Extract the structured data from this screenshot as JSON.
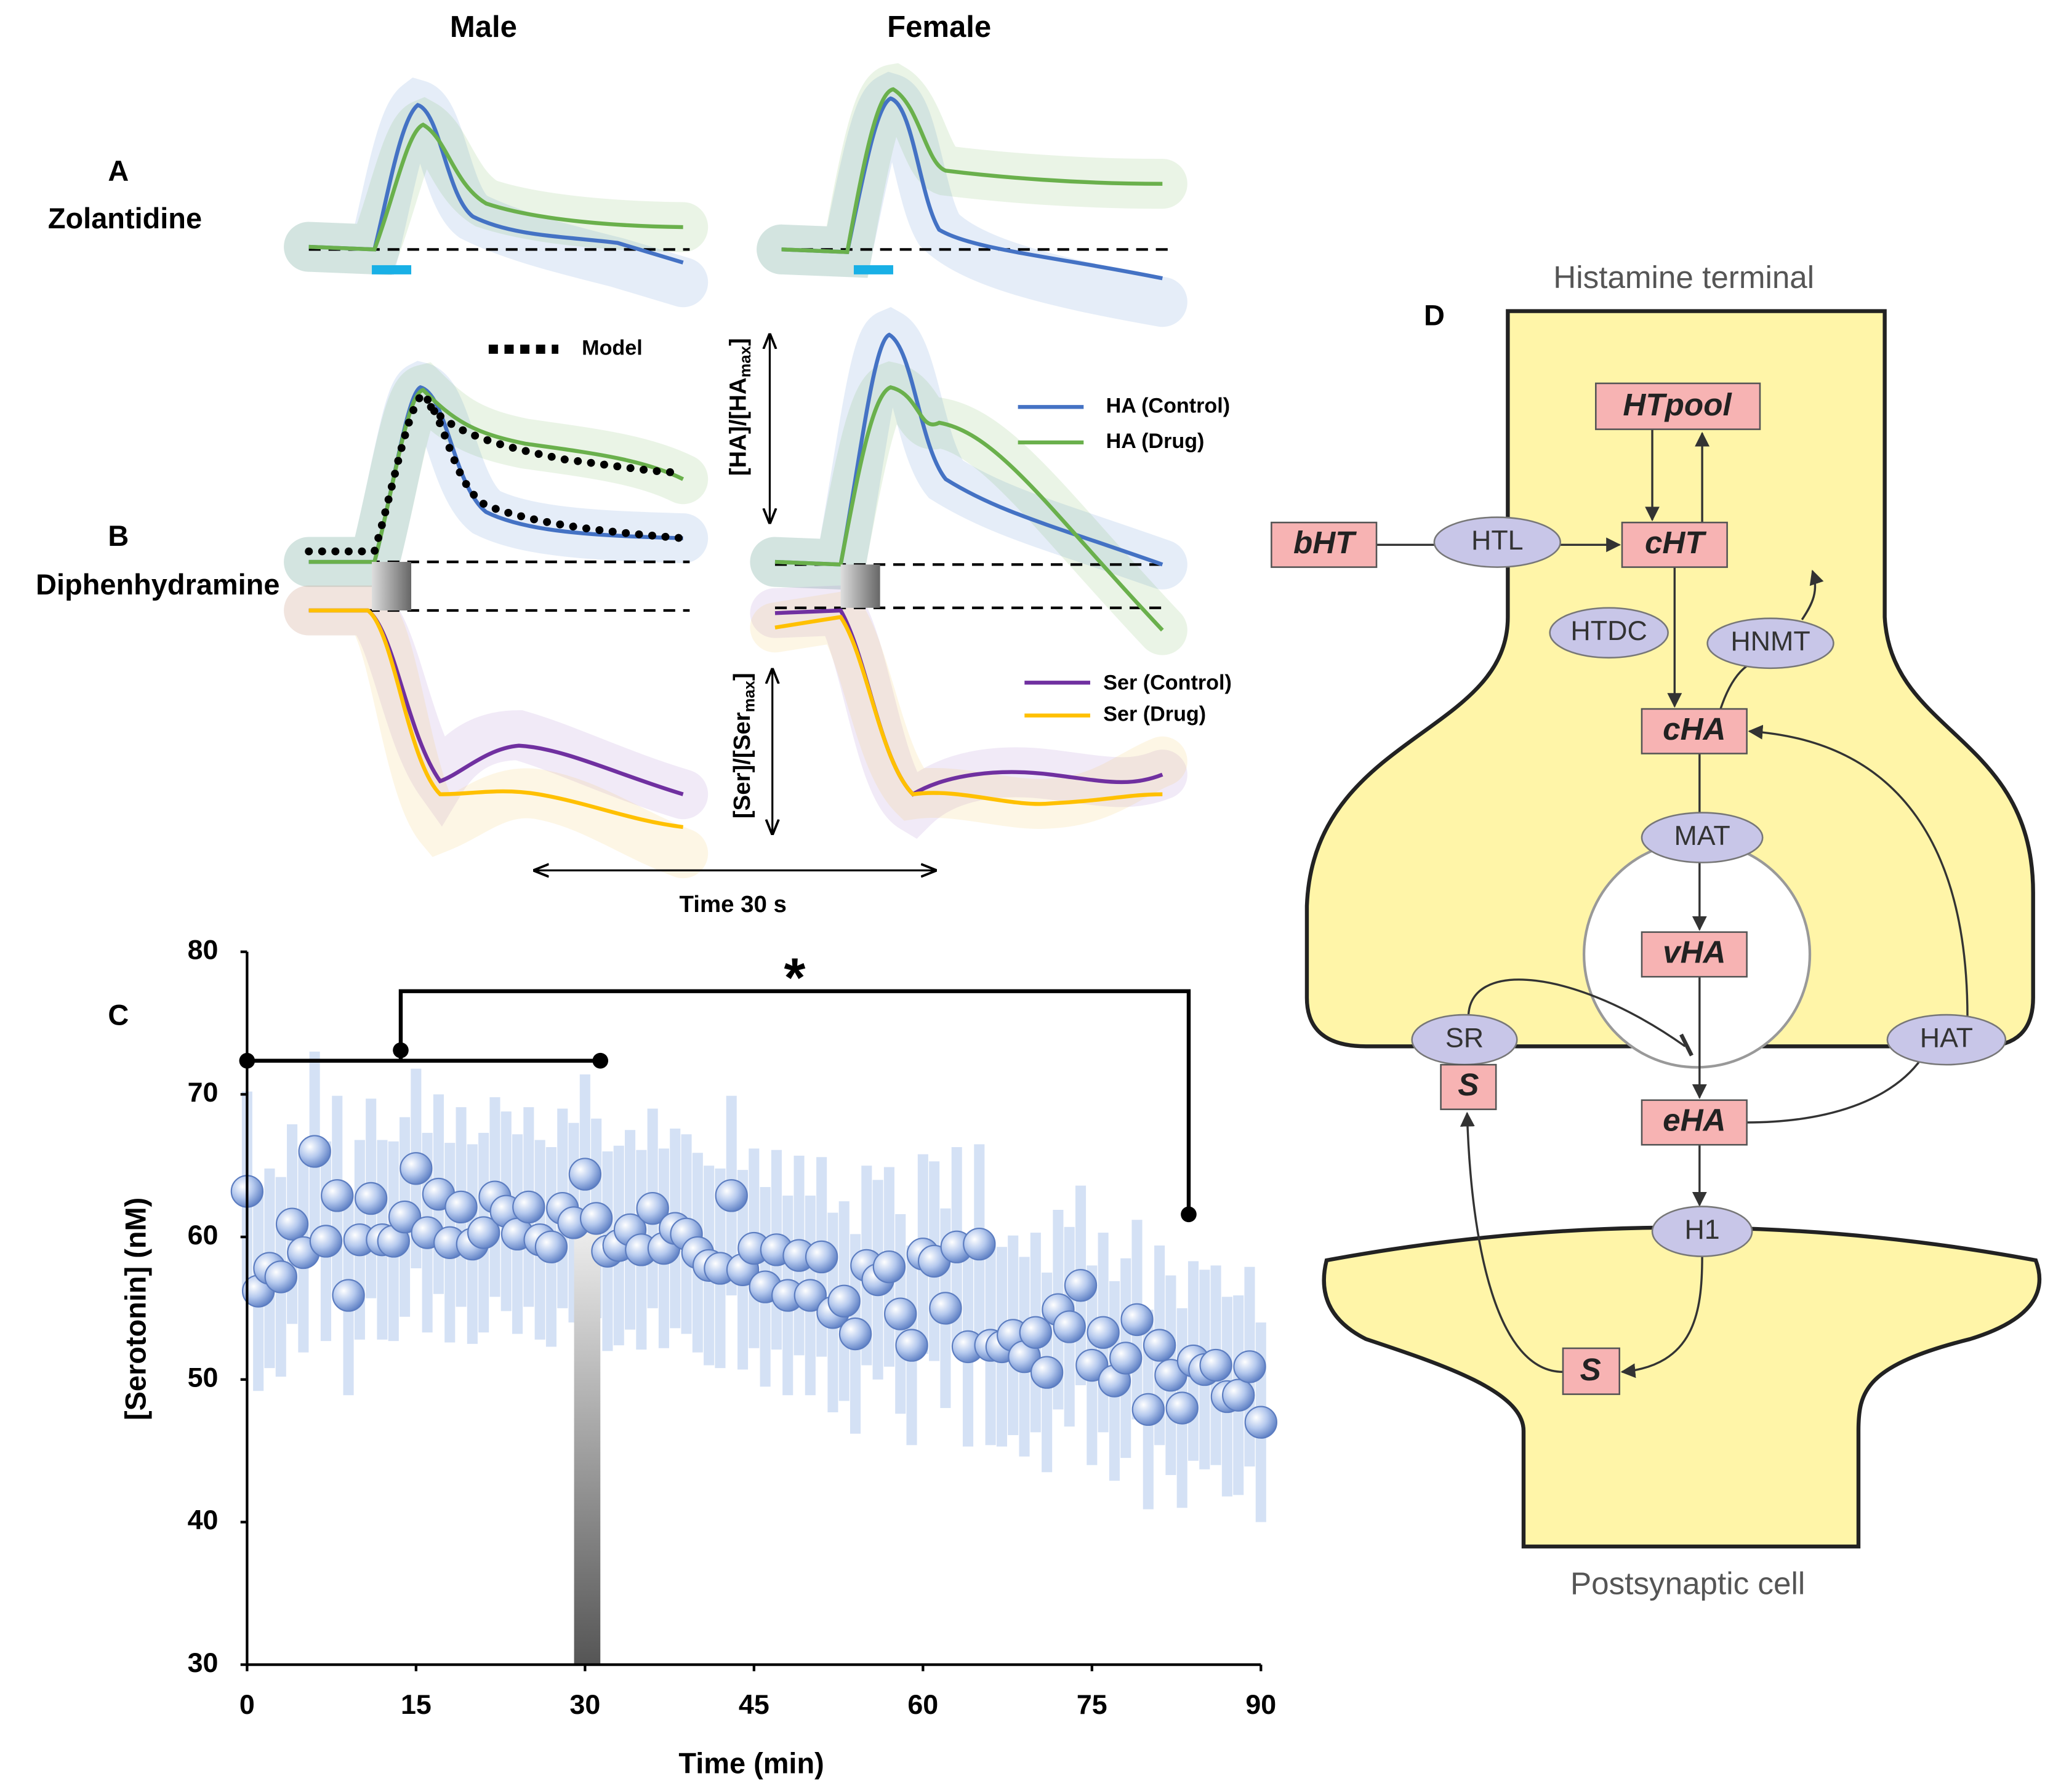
{
  "panels_ab": {
    "col_male": "Male",
    "col_female": "Female",
    "panel_a": "A",
    "panel_a_drug": "Zolantidine",
    "panel_b": "B",
    "panel_b_drug": "Diphenhydramine",
    "model_legend": "Model",
    "legend": [
      "HA (Control)",
      "HA (Drug)",
      "Ser (Control)",
      "Ser (Drug)"
    ],
    "ha_scale": {
      "main": "[HA]/[HA",
      "sub": "max",
      "end": "]"
    },
    "ser_scale": {
      "main": "[Ser]/[Ser",
      "sub": "max",
      "end": "]"
    },
    "time_scale": "Time 30 s"
  },
  "chart_data": {
    "type": "scatter",
    "panel_label": "C",
    "significance": "*",
    "xlabel": "Time (min)",
    "ylabel": "[Serotonin] (nM)",
    "x": [
      0,
      1,
      2,
      3,
      4,
      5,
      6,
      7,
      8,
      9,
      10,
      11,
      12,
      13,
      14,
      15,
      16,
      17,
      18,
      19,
      20,
      21,
      22,
      23,
      24,
      25,
      26,
      27,
      28,
      29,
      30,
      31,
      32,
      33,
      34,
      35,
      36,
      37,
      38,
      39,
      40,
      41,
      42,
      43,
      44,
      45,
      46,
      47,
      48,
      49,
      50,
      51,
      52,
      53,
      54,
      55,
      56,
      57,
      58,
      59,
      60,
      61,
      62,
      63,
      64,
      65,
      66,
      67,
      68,
      69,
      70,
      71,
      72,
      73,
      74,
      75,
      76,
      77,
      78,
      79,
      80,
      81,
      82,
      83,
      84,
      85,
      86,
      87,
      88,
      89,
      90
    ],
    "values": [
      63.2,
      56.2,
      57.8,
      57.2,
      60.9,
      58.9,
      66.0,
      59.7,
      62.9,
      55.9,
      59.8,
      62.7,
      59.8,
      59.7,
      61.4,
      64.8,
      60.3,
      63.0,
      59.6,
      62.1,
      59.5,
      60.3,
      62.8,
      61.8,
      60.2,
      62.1,
      59.8,
      59.3,
      62.0,
      61.0,
      64.4,
      61.3,
      59.0,
      59.4,
      60.5,
      59.1,
      62.0,
      59.2,
      60.6,
      60.2,
      58.9,
      58.0,
      57.8,
      62.9,
      57.7,
      59.2,
      56.5,
      59.1,
      55.9,
      58.7,
      55.9,
      58.6,
      54.7,
      55.5,
      53.2,
      58.0,
      57.0,
      57.9,
      54.6,
      52.4,
      58.8,
      58.3,
      55.0,
      59.3,
      52.3,
      59.5,
      52.4,
      52.3,
      53.1,
      51.6,
      53.3,
      50.5,
      54.9,
      53.7,
      56.6,
      51.0,
      53.3,
      49.9,
      51.5,
      54.2,
      47.9,
      52.4,
      50.3,
      48.0,
      51.3,
      50.7,
      51.0,
      48.8,
      48.9,
      50.9,
      47.0
    ],
    "errors": [
      7,
      7,
      7,
      7,
      7,
      7,
      7,
      7,
      7,
      7,
      7,
      7,
      7,
      7,
      7,
      7,
      7,
      7,
      7,
      7,
      7,
      7,
      7,
      7,
      7,
      7,
      7,
      7,
      7,
      7,
      7,
      7,
      7,
      7,
      7,
      7,
      7,
      7,
      7,
      7,
      7,
      7,
      7,
      7,
      7,
      7,
      7,
      7,
      7,
      7,
      7,
      7,
      7,
      7,
      7,
      7,
      7,
      7,
      7,
      7,
      7,
      7,
      7,
      7,
      7,
      7,
      7,
      7,
      7,
      7,
      7,
      7,
      7,
      7,
      7,
      7,
      7,
      7,
      7,
      7,
      7,
      7,
      7,
      7,
      7,
      7,
      7,
      7,
      7,
      7,
      7
    ],
    "color": "#a9c4ec",
    "xlim": [
      0,
      90
    ],
    "ylim": [
      30,
      80
    ],
    "xticks": [
      0,
      15,
      30,
      45,
      60,
      75,
      90
    ],
    "yticks": [
      30,
      40,
      50,
      60,
      70,
      80
    ]
  },
  "diagram": {
    "label": "D",
    "top_label": "Histamine terminal",
    "bottom_label": "Postsynaptic cell",
    "nodes": [
      {
        "label": "HTpool"
      },
      {
        "label": "bHT"
      },
      {
        "label": "HTL"
      },
      {
        "label": "cHT"
      },
      {
        "label": "HTDC"
      },
      {
        "label": "HNMT"
      },
      {
        "label": "cHA"
      },
      {
        "label": "MAT"
      },
      {
        "label": "vHA"
      },
      {
        "label": "SR"
      },
      {
        "label": "S"
      },
      {
        "label": "HAT"
      },
      {
        "label": "eHA"
      },
      {
        "label": "H1"
      },
      {
        "label": "S"
      }
    ]
  }
}
